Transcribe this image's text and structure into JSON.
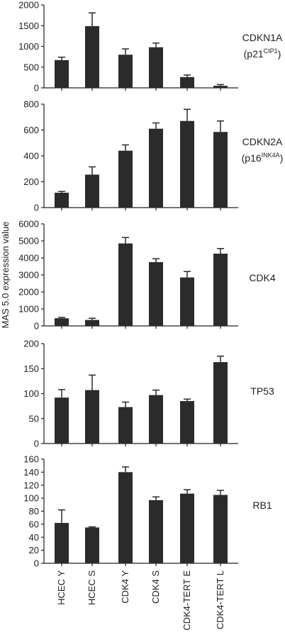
{
  "figure": {
    "ylabel": "MAS 5.0 expression value",
    "categories": [
      "HCEC Y",
      "HCEC S",
      "CDK4 Y",
      "CDK4 S",
      "CDK4-TERT E",
      "CDK4-TERT L"
    ],
    "colors": {
      "bar": "#2b2b2b",
      "axis": "#222222"
    }
  },
  "chart_data": [
    {
      "type": "bar",
      "gene": "CDKN1A",
      "sub": "(p21",
      "sup": "CIP1",
      "sub_end": ")",
      "categories": [
        "HCEC Y",
        "HCEC S",
        "CDK4 Y",
        "CDK4 S",
        "CDK4-TERT E",
        "CDK4-TERT L"
      ],
      "values": [
        670,
        1490,
        800,
        980,
        260,
        50
      ],
      "errors": [
        70,
        320,
        140,
        100,
        50,
        30
      ],
      "ylim": [
        0,
        2000
      ],
      "yticks": [
        0,
        500,
        1000,
        1500,
        2000
      ]
    },
    {
      "type": "bar",
      "gene": "CDKN2A",
      "sub": "(p16",
      "sup": "INK4A",
      "sub_end": ")",
      "categories": [
        "HCEC Y",
        "HCEC S",
        "CDK4 Y",
        "CDK4 S",
        "CDK4-TERT E",
        "CDK4-TERT L"
      ],
      "values": [
        115,
        255,
        440,
        610,
        670,
        585
      ],
      "errors": [
        10,
        60,
        45,
        45,
        90,
        85
      ],
      "ylim": [
        0,
        800
      ],
      "yticks": [
        0,
        200,
        400,
        600,
        800
      ]
    },
    {
      "type": "bar",
      "gene": "CDK4",
      "sub": "",
      "sup": "",
      "sub_end": "",
      "categories": [
        "HCEC Y",
        "HCEC S",
        "CDK4 Y",
        "CDK4 S",
        "CDK4-TERT E",
        "CDK4-TERT L"
      ],
      "values": [
        450,
        350,
        4850,
        3750,
        2850,
        4250
      ],
      "errors": [
        50,
        100,
        350,
        200,
        350,
        300
      ],
      "ylim": [
        0,
        6000
      ],
      "yticks": [
        0,
        1000,
        2000,
        3000,
        4000,
        5000,
        6000
      ]
    },
    {
      "type": "bar",
      "gene": "TP53",
      "sub": "",
      "sup": "",
      "sub_end": "",
      "categories": [
        "HCEC Y",
        "HCEC S",
        "CDK4 Y",
        "CDK4 S",
        "CDK4-TERT E",
        "CDK4-TERT L"
      ],
      "values": [
        92,
        107,
        73,
        97,
        85,
        163
      ],
      "errors": [
        16,
        30,
        10,
        10,
        4,
        12
      ],
      "ylim": [
        0,
        200
      ],
      "yticks": [
        0,
        50,
        100,
        150,
        200
      ]
    },
    {
      "type": "bar",
      "gene": "RB1",
      "sub": "",
      "sup": "",
      "sub_end": "",
      "categories": [
        "HCEC Y",
        "HCEC S",
        "CDK4 Y",
        "CDK4 S",
        "CDK4-TERT E",
        "CDK4-TERT L"
      ],
      "values": [
        62,
        55,
        140,
        97,
        107,
        105
      ],
      "errors": [
        20,
        1,
        8,
        5,
        6,
        7
      ],
      "ylim": [
        0,
        160
      ],
      "yticks": [
        0,
        20,
        40,
        60,
        80,
        100,
        120,
        140,
        160
      ]
    }
  ]
}
